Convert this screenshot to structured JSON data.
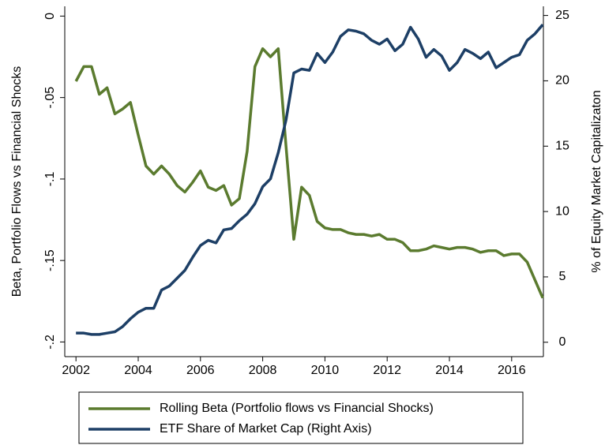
{
  "chart_data": {
    "type": "line",
    "y_label": "Beta, Portfolio Flows vs Financial Shocks",
    "y2_label": "% of Equity Market Capitalizaton",
    "x": [
      2002,
      2002.25,
      2002.5,
      2002.75,
      2003,
      2003.25,
      2003.5,
      2003.75,
      2004,
      2004.25,
      2004.5,
      2004.75,
      2005,
      2005.25,
      2005.5,
      2005.75,
      2006,
      2006.25,
      2006.5,
      2006.75,
      2007,
      2007.25,
      2007.5,
      2007.75,
      2008,
      2008.25,
      2008.5,
      2008.75,
      2009,
      2009.25,
      2009.5,
      2009.75,
      2010,
      2010.25,
      2010.5,
      2010.75,
      2011,
      2011.25,
      2011.5,
      2011.75,
      2012,
      2012.25,
      2012.5,
      2012.75,
      2013,
      2013.25,
      2013.5,
      2013.75,
      2014,
      2014.25,
      2014.5,
      2014.75,
      2015,
      2015.25,
      2015.5,
      2015.75,
      2016,
      2016.25,
      2016.5,
      2016.75,
      2017
    ],
    "series": [
      {
        "name": "Rolling Beta (Portfolio flows vs Financial Shocks)",
        "color": "#5b7b2f",
        "axis": "y",
        "values": [
          -0.04,
          -0.031,
          -0.031,
          -0.048,
          -0.044,
          -0.06,
          -0.057,
          -0.053,
          -0.073,
          -0.092,
          -0.097,
          -0.092,
          -0.097,
          -0.104,
          -0.108,
          -0.102,
          -0.095,
          -0.105,
          -0.107,
          -0.104,
          -0.116,
          -0.112,
          -0.083,
          -0.031,
          -0.02,
          -0.025,
          -0.02,
          -0.08,
          -0.137,
          -0.105,
          -0.11,
          -0.126,
          -0.13,
          -0.131,
          -0.131,
          -0.133,
          -0.134,
          -0.134,
          -0.135,
          -0.134,
          -0.137,
          -0.137,
          -0.139,
          -0.144,
          -0.144,
          -0.143,
          -0.141,
          -0.142,
          -0.143,
          -0.142,
          -0.142,
          -0.143,
          -0.145,
          -0.144,
          -0.144,
          -0.147,
          -0.146,
          -0.146,
          -0.151,
          -0.162,
          -0.173
        ]
      },
      {
        "name": "ETF Share of Market Cap (Right Axis)",
        "color": "#1d3f66",
        "axis": "y2",
        "values": [
          0.7,
          0.7,
          0.6,
          0.6,
          0.7,
          0.8,
          1.2,
          1.8,
          2.3,
          2.6,
          2.6,
          4.0,
          4.3,
          4.9,
          5.5,
          6.5,
          7.4,
          7.8,
          7.6,
          8.6,
          8.7,
          9.3,
          9.8,
          10.6,
          11.9,
          12.5,
          14.5,
          17.0,
          20.6,
          20.9,
          20.8,
          22.1,
          21.4,
          22.2,
          23.4,
          23.9,
          23.8,
          23.6,
          23.1,
          22.8,
          23.2,
          22.3,
          22.8,
          24.1,
          23.2,
          21.8,
          22.4,
          21.9,
          20.8,
          21.4,
          22.4,
          22.1,
          21.7,
          22.2,
          21.0,
          21.4,
          21.8,
          22.0,
          23.1,
          23.6,
          24.3
        ]
      }
    ],
    "xlim": [
      2001.64,
      2017.02
    ],
    "xticks": [
      2002,
      2004,
      2006,
      2008,
      2010,
      2012,
      2014,
      2016
    ],
    "ylim": [
      -0.209,
      0.006
    ],
    "yticks": [
      0,
      {
        "value": -0.05,
        "label": "-.05"
      },
      {
        "value": -0.1,
        "label": "-.1"
      },
      {
        "value": -0.15,
        "label": "-.15"
      },
      {
        "value": -0.2,
        "label": "-.2"
      }
    ],
    "y2lim": [
      -1.1,
      25.7
    ],
    "y2ticks": [
      0,
      5,
      10,
      15,
      20,
      25
    ],
    "grid": false
  }
}
